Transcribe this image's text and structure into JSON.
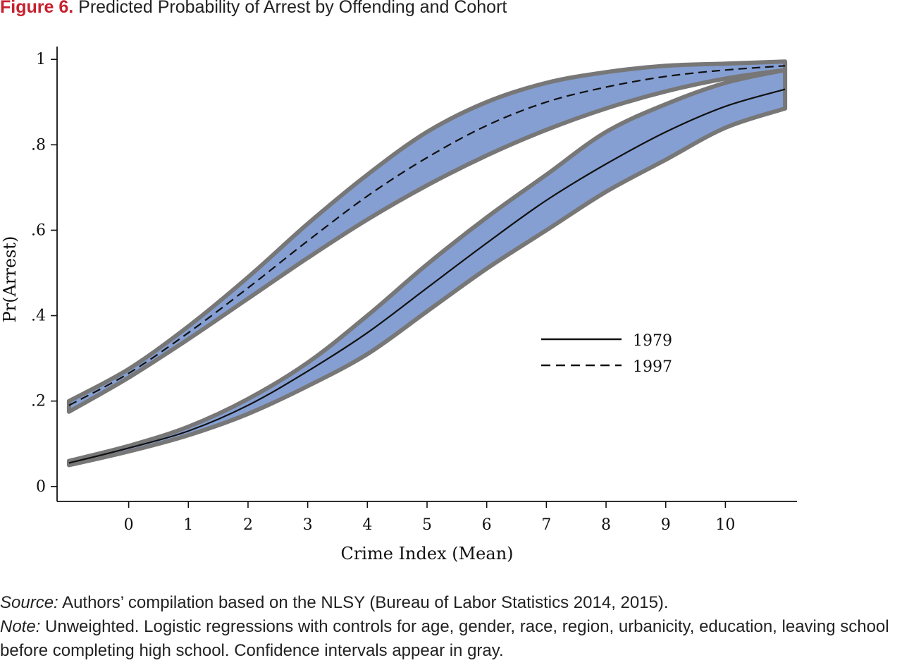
{
  "figure": {
    "label": "Figure 6.",
    "title": "Predicted Probability of Arrest by Offending and Cohort"
  },
  "chart_data": {
    "type": "line",
    "xlabel": "Crime Index (Mean)",
    "ylabel": "Pr(Arrest)",
    "xlim": [
      -1.2,
      11.2
    ],
    "ylim": [
      -0.035,
      1.03
    ],
    "x_ticks": [
      0,
      1,
      2,
      3,
      4,
      5,
      6,
      7,
      8,
      9,
      10
    ],
    "x_tick_labels": [
      "0",
      "1",
      "2",
      "3",
      "4",
      "5",
      "6",
      "7",
      "8",
      "9",
      "10"
    ],
    "y_ticks": [
      0,
      0.2,
      0.4,
      0.6,
      0.8,
      1
    ],
    "y_tick_labels": [
      "0",
      ".2",
      ".4",
      ".6",
      ".8",
      "1"
    ],
    "grid": false,
    "legend_position": "center-right",
    "band_fill_color": "#859fd2",
    "band_edge_color": "#777777",
    "x": [
      -1,
      0,
      1,
      2,
      3,
      4,
      5,
      6,
      7,
      8,
      9,
      10,
      11
    ],
    "series": [
      {
        "name": "1979",
        "line_style": "solid",
        "values": [
          0.055,
          0.09,
          0.13,
          0.19,
          0.27,
          0.36,
          0.465,
          0.57,
          0.67,
          0.755,
          0.83,
          0.89,
          0.93
        ],
        "ci_lower": [
          0.05,
          0.082,
          0.12,
          0.17,
          0.235,
          0.31,
          0.41,
          0.51,
          0.6,
          0.69,
          0.765,
          0.84,
          0.885
        ],
        "ci_upper": [
          0.06,
          0.095,
          0.14,
          0.205,
          0.29,
          0.4,
          0.52,
          0.63,
          0.73,
          0.83,
          0.895,
          0.945,
          0.975
        ]
      },
      {
        "name": "1997",
        "line_style": "dashed",
        "values": [
          0.19,
          0.265,
          0.36,
          0.465,
          0.575,
          0.68,
          0.77,
          0.845,
          0.9,
          0.935,
          0.96,
          0.975,
          0.985
        ],
        "ci_lower": [
          0.175,
          0.255,
          0.345,
          0.44,
          0.535,
          0.625,
          0.705,
          0.775,
          0.835,
          0.885,
          0.925,
          0.955,
          0.975
        ],
        "ci_upper": [
          0.2,
          0.275,
          0.375,
          0.49,
          0.615,
          0.73,
          0.83,
          0.9,
          0.945,
          0.97,
          0.985,
          0.99,
          0.995
        ]
      }
    ]
  },
  "notes": {
    "source_label": "Source:",
    "source_text": " Authors’ compilation based on the NLSY (Bureau of Labor Statistics 2014, 2015).",
    "note_label": "Note:",
    "note_text": " Unweighted. Logistic regressions with controls for age, gender, race, region, urbanicity, education, leaving school before completing high school. Confidence intervals appear in gray."
  }
}
